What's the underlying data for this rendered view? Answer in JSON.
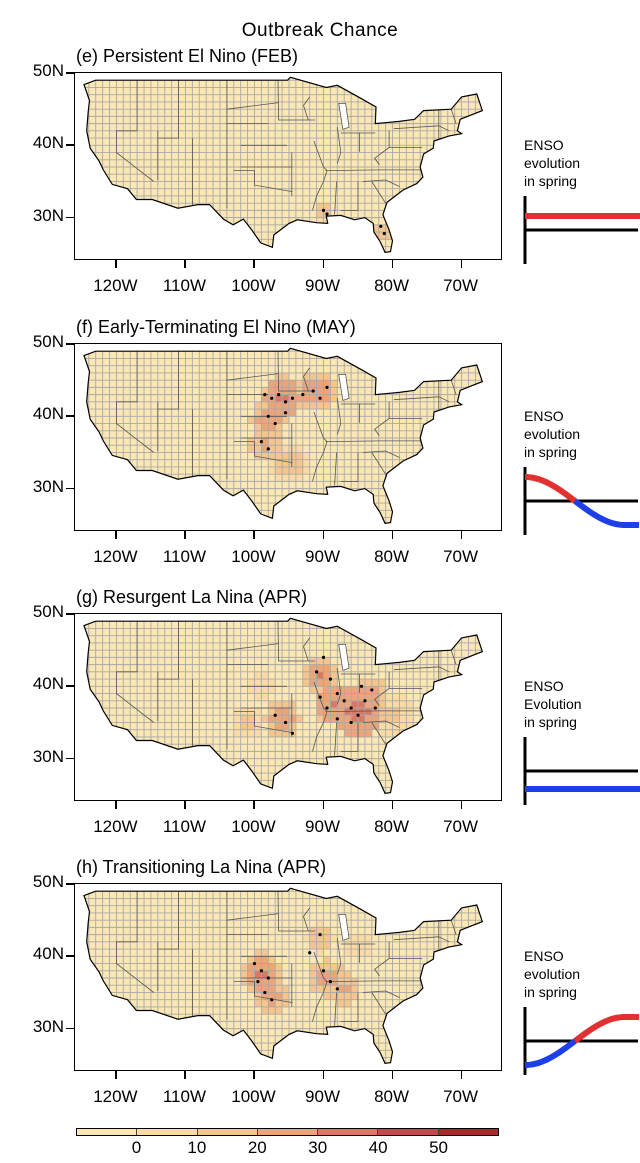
{
  "title": "Outbreak Chance",
  "axes": {
    "lat_labels": [
      "50N",
      "40N",
      "30N"
    ],
    "lon_labels": [
      "120W",
      "110W",
      "100W",
      "90W",
      "80W",
      "70W"
    ]
  },
  "colorbar": {
    "tick_labels": [
      "0",
      "10",
      "20",
      "30",
      "40",
      "50"
    ],
    "colors": [
      "#fbe7b3",
      "#f9dba3",
      "#f5c58e",
      "#eca57a",
      "#dd7765",
      "#c34a4c",
      "#a52a2a"
    ]
  },
  "colors": {
    "land_base": "#fbe7b3",
    "grid": "#a9a9a9",
    "el_nino_line": "#e03030",
    "la_nina_line": "#1d3fe8"
  },
  "panels": [
    {
      "title": "(e) Persistent El Nino (FEB)",
      "enso_label": [
        "ENSO",
        "evolution",
        "in spring"
      ],
      "enso_curve": "persistent_warm",
      "hotspots": [
        {
          "lon": -90.0,
          "lat": 30.8,
          "value": 22,
          "radius": 1.4
        },
        {
          "lon": -81.5,
          "lat": 28.0,
          "value": 20,
          "radius": 1.3
        }
      ],
      "stipples": [
        {
          "lon": -90.0,
          "lat": 31.0
        },
        {
          "lon": -89.5,
          "lat": 30.5
        },
        {
          "lon": -81.7,
          "lat": 28.8
        },
        {
          "lon": -81.2,
          "lat": 27.8
        }
      ]
    },
    {
      "title": "(f) Early-Terminating El Nino (MAY)",
      "enso_label": [
        "ENSO",
        "evolution",
        "in spring"
      ],
      "enso_curve": "warm_to_cold",
      "hotspots": [
        {
          "lon": -96.0,
          "lat": 42.5,
          "value": 36,
          "radius": 3.2
        },
        {
          "lon": -91.0,
          "lat": 43.5,
          "value": 33,
          "radius": 2.8
        },
        {
          "lon": -98.0,
          "lat": 39.5,
          "value": 30,
          "radius": 2.6
        },
        {
          "lon": -98.5,
          "lat": 36.0,
          "value": 26,
          "radius": 2.4
        },
        {
          "lon": -95.0,
          "lat": 33.5,
          "value": 16,
          "radius": 3.0
        }
      ],
      "stipples": [
        {
          "lon": -98.5,
          "lat": 43.0
        },
        {
          "lon": -97.5,
          "lat": 42.5
        },
        {
          "lon": -96.5,
          "lat": 43.0
        },
        {
          "lon": -95.5,
          "lat": 42.0
        },
        {
          "lon": -94.5,
          "lat": 42.5
        },
        {
          "lon": -93.0,
          "lat": 43.0
        },
        {
          "lon": -91.5,
          "lat": 43.5
        },
        {
          "lon": -90.5,
          "lat": 42.5
        },
        {
          "lon": -89.5,
          "lat": 44.0
        },
        {
          "lon": -98.0,
          "lat": 40.0
        },
        {
          "lon": -97.0,
          "lat": 39.0
        },
        {
          "lon": -99.0,
          "lat": 36.5
        },
        {
          "lon": -98.0,
          "lat": 35.5
        },
        {
          "lon": -95.5,
          "lat": 40.5
        }
      ]
    },
    {
      "title": "(g) Resurgent La Nina (APR)",
      "enso_label": [
        "ENSO",
        "Evolution",
        "in spring"
      ],
      "enso_curve": "persistent_cold",
      "hotspots": [
        {
          "lon": -85.0,
          "lat": 36.5,
          "value": 40,
          "radius": 3.8
        },
        {
          "lon": -88.5,
          "lat": 37.5,
          "value": 36,
          "radius": 3.0
        },
        {
          "lon": -90.5,
          "lat": 41.5,
          "value": 32,
          "radius": 2.6
        },
        {
          "lon": -96.0,
          "lat": 35.5,
          "value": 32,
          "radius": 2.6
        },
        {
          "lon": -83.0,
          "lat": 39.0,
          "value": 30,
          "radius": 2.4
        },
        {
          "lon": -80.0,
          "lat": 36.0,
          "value": 14,
          "radius": 3.0
        },
        {
          "lon": -101.0,
          "lat": 35.0,
          "value": 12,
          "radius": 2.5
        },
        {
          "lon": -99.0,
          "lat": 40.0,
          "value": 10,
          "radius": 2.0
        }
      ],
      "stipples": [
        {
          "lon": -90.0,
          "lat": 44.0
        },
        {
          "lon": -91.0,
          "lat": 42.0
        },
        {
          "lon": -89.0,
          "lat": 41.0
        },
        {
          "lon": -88.0,
          "lat": 39.0
        },
        {
          "lon": -87.0,
          "lat": 38.0
        },
        {
          "lon": -86.0,
          "lat": 37.0
        },
        {
          "lon": -85.0,
          "lat": 36.0
        },
        {
          "lon": -84.0,
          "lat": 38.0
        },
        {
          "lon": -83.0,
          "lat": 39.5
        },
        {
          "lon": -86.0,
          "lat": 35.0
        },
        {
          "lon": -88.0,
          "lat": 35.5
        },
        {
          "lon": -89.5,
          "lat": 37.0
        },
        {
          "lon": -97.0,
          "lat": 36.0
        },
        {
          "lon": -95.5,
          "lat": 35.0
        },
        {
          "lon": -94.5,
          "lat": 33.5
        },
        {
          "lon": -84.5,
          "lat": 40.0
        },
        {
          "lon": -82.5,
          "lat": 37.0
        },
        {
          "lon": -90.5,
          "lat": 38.5
        }
      ]
    },
    {
      "title": "(h) Transitioning La Nina (APR)",
      "enso_label": [
        "ENSO",
        "evolution",
        "in spring"
      ],
      "enso_curve": "cold_to_warm",
      "hotspots": [
        {
          "lon": -99.0,
          "lat": 37.5,
          "value": 34,
          "radius": 3.2
        },
        {
          "lon": -97.5,
          "lat": 34.5,
          "value": 28,
          "radius": 2.6
        },
        {
          "lon": -89.5,
          "lat": 37.0,
          "value": 28,
          "radius": 2.6
        },
        {
          "lon": -87.0,
          "lat": 35.5,
          "value": 24,
          "radius": 2.4
        },
        {
          "lon": -90.5,
          "lat": 42.5,
          "value": 16,
          "radius": 2.2
        },
        {
          "lon": -85.0,
          "lat": 41.5,
          "value": 10,
          "radius": 2.0
        }
      ],
      "stipples": [
        {
          "lon": -100.0,
          "lat": 39.0
        },
        {
          "lon": -99.0,
          "lat": 38.0
        },
        {
          "lon": -98.0,
          "lat": 37.0
        },
        {
          "lon": -99.5,
          "lat": 36.5
        },
        {
          "lon": -98.5,
          "lat": 35.0
        },
        {
          "lon": -97.5,
          "lat": 34.0
        },
        {
          "lon": -90.0,
          "lat": 38.0
        },
        {
          "lon": -89.0,
          "lat": 36.5
        },
        {
          "lon": -88.0,
          "lat": 35.5
        },
        {
          "lon": -92.0,
          "lat": 40.5
        },
        {
          "lon": -90.5,
          "lat": 43.0
        }
      ]
    }
  ]
}
